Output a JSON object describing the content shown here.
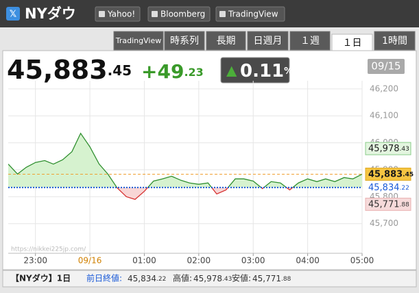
{
  "header": {
    "title": "NYダウ",
    "links": [
      "Yahoo!",
      "Bloomberg",
      "TradingView"
    ]
  },
  "tabs": {
    "items": [
      "TradingView",
      "時系列",
      "長期",
      "日週月",
      "１週",
      "１日",
      "1時間"
    ],
    "active": 5
  },
  "quote": {
    "price_int": "45,883",
    "price_dec": ".45",
    "change_int": "+49",
    "change_dec": ".23",
    "pct": "0.11",
    "pct_unit": "%",
    "date": "09/15"
  },
  "chart_data": {
    "type": "line",
    "x": [
      22.5,
      22.67,
      22.83,
      23,
      23.17,
      23.33,
      23.5,
      23.67,
      23.83,
      24,
      24.17,
      24.33,
      24.5,
      24.67,
      24.83,
      25,
      25.17,
      25.33,
      25.5,
      25.67,
      25.83,
      26,
      26.17,
      26.33,
      26.5,
      26.67,
      26.83,
      27,
      27.17,
      27.33,
      27.5,
      27.67,
      27.83,
      28,
      28.17,
      28.33,
      28.5,
      28.67,
      28.83,
      29
    ],
    "values": [
      45921,
      45884,
      45909,
      45927,
      45934,
      45921,
      45937,
      45967,
      46035,
      45985,
      45921,
      45884,
      45833,
      45800,
      45790,
      45820,
      45858,
      45866,
      45876,
      45861,
      45851,
      45846,
      45851,
      45810,
      45825,
      45866,
      45866,
      45858,
      45830,
      45856,
      45851,
      45825,
      45851,
      45866,
      45856,
      45866,
      45856,
      45871,
      45866,
      45883.45
    ],
    "color_above": "#2f8f2f",
    "color_below": "#d63030",
    "fill_above": "#d6f2cf",
    "fill_below": "#f8d6d6",
    "xlim": [
      22.5,
      29
    ],
    "ylim": [
      45590,
      46230
    ],
    "xticks": [
      {
        "value": 23,
        "label": "23:00"
      },
      {
        "value": 24,
        "label": "09/16",
        "color": "#d08000"
      },
      {
        "value": 25,
        "label": "01:00"
      },
      {
        "value": 26,
        "label": "02:00"
      },
      {
        "value": 27,
        "label": "03:00"
      },
      {
        "value": 28,
        "label": "04:00"
      },
      {
        "value": 29,
        "label": "05:00"
      }
    ],
    "yticks": [
      {
        "value": 45700,
        "label": "45,700"
      },
      {
        "value": 45800,
        "label": "45,800"
      },
      {
        "value": 45900,
        "label": "45,900"
      },
      {
        "value": 46000,
        "label": "46,000"
      },
      {
        "value": 46100,
        "label": "46,100"
      },
      {
        "value": 46200,
        "label": "46,200"
      }
    ],
    "grid": true,
    "reference_lines": [
      {
        "value": 45978.43,
        "int": "45,978",
        "dec": ".43",
        "text_color": "#1a1a1a",
        "box": "#e3f5df",
        "border": "#8c8",
        "line": "none"
      },
      {
        "value": 45834.22,
        "int": "45,834",
        "dec": ".22",
        "text_color": "#1a5ad8",
        "box": "none",
        "border": "none",
        "line": "dotted",
        "line_color": "#1a5ad8"
      },
      {
        "value": 45771.88,
        "int": "45,771",
        "dec": ".88",
        "text_color": "#333",
        "box": "#f6dada",
        "border": "#e9b0b0",
        "line": "none"
      },
      {
        "value": 45883.45,
        "int": "45,883",
        "dec": ".45",
        "text_color": "#1a1a1a",
        "box": "#f5c542",
        "border": "#e0a820",
        "line": "dashed",
        "line_color": "#f0a030"
      }
    ],
    "watermark": "https://nikkei225jp.com/"
  },
  "footer": {
    "name": "【NYダウ】1日",
    "prev_label": "前日終値:",
    "prev_int": "45,834",
    "prev_dec": ".22",
    "high_label": "高値:",
    "high_int": "45,978",
    "high_dec": ".43",
    "low_label": "安値:",
    "low_int": "45,771",
    "low_dec": ".88"
  }
}
